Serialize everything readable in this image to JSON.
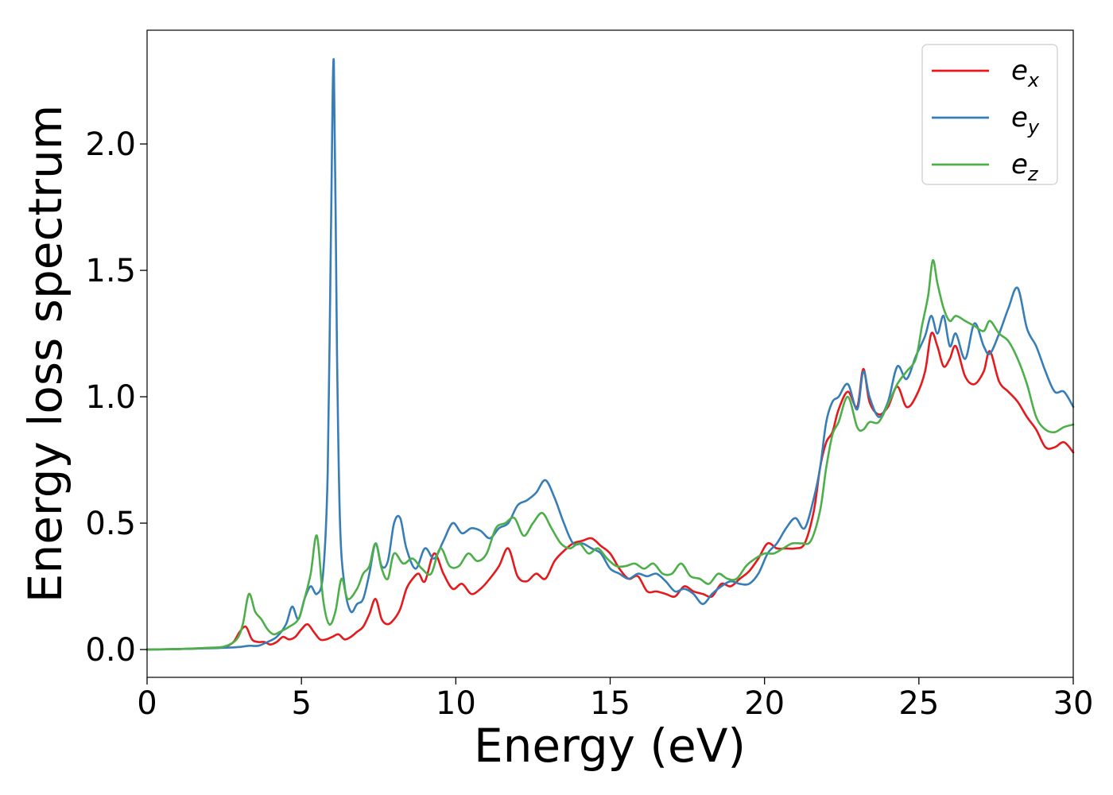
{
  "chart_data": {
    "type": "line",
    "xlabel": "Energy (eV)",
    "ylabel": "Energy loss spectrum",
    "xlim": [
      0,
      30
    ],
    "ylim": [
      -0.11,
      2.45
    ],
    "xticks": [
      0,
      5,
      10,
      15,
      20,
      25,
      30
    ],
    "xtick_labels": [
      "0",
      "5",
      "10",
      "15",
      "20",
      "25",
      "30"
    ],
    "yticks": [
      0.0,
      0.5,
      1.0,
      1.5,
      2.0
    ],
    "ytick_labels": [
      "0.0",
      "0.5",
      "1.0",
      "1.5",
      "2.0"
    ],
    "grid": false,
    "legend": {
      "placement": "top-right"
    },
    "series": [
      {
        "name": "e_x",
        "label_base": "e",
        "label_sub": "x",
        "color": "#e41a1c",
        "x": [
          0,
          1,
          2,
          2.5,
          2.8,
          3.0,
          3.2,
          3.4,
          3.6,
          3.8,
          4.0,
          4.2,
          4.4,
          4.6,
          4.8,
          5.0,
          5.2,
          5.4,
          5.6,
          5.8,
          6.0,
          6.2,
          6.4,
          6.6,
          6.8,
          7.0,
          7.2,
          7.4,
          7.6,
          7.8,
          8.0,
          8.2,
          8.4,
          8.6,
          8.8,
          9.0,
          9.3,
          9.6,
          9.9,
          10.2,
          10.5,
          10.8,
          11.1,
          11.4,
          11.7,
          12.0,
          12.3,
          12.6,
          12.9,
          13.2,
          13.5,
          13.8,
          14.1,
          14.4,
          14.7,
          15.0,
          15.3,
          15.6,
          15.9,
          16.2,
          16.5,
          16.8,
          17.1,
          17.4,
          17.7,
          18.0,
          18.3,
          18.6,
          18.9,
          19.2,
          19.5,
          19.8,
          20.1,
          20.4,
          20.7,
          21.0,
          21.3,
          21.6,
          21.8,
          22.0,
          22.2,
          22.4,
          22.7,
          23.0,
          23.2,
          23.4,
          23.7,
          24.0,
          24.3,
          24.6,
          24.9,
          25.2,
          25.4,
          25.6,
          25.8,
          26.0,
          26.2,
          26.5,
          26.8,
          27.1,
          27.3,
          27.6,
          27.9,
          28.2,
          28.5,
          28.8,
          29.1,
          29.4,
          29.7,
          30.0
        ],
        "y": [
          0,
          0.002,
          0.006,
          0.01,
          0.03,
          0.07,
          0.09,
          0.04,
          0.03,
          0.03,
          0.02,
          0.03,
          0.05,
          0.04,
          0.05,
          0.08,
          0.1,
          0.07,
          0.04,
          0.04,
          0.05,
          0.06,
          0.04,
          0.05,
          0.07,
          0.09,
          0.14,
          0.2,
          0.12,
          0.1,
          0.12,
          0.16,
          0.24,
          0.28,
          0.3,
          0.27,
          0.38,
          0.3,
          0.24,
          0.26,
          0.22,
          0.24,
          0.28,
          0.33,
          0.4,
          0.29,
          0.27,
          0.3,
          0.28,
          0.35,
          0.39,
          0.42,
          0.43,
          0.44,
          0.41,
          0.38,
          0.32,
          0.28,
          0.29,
          0.23,
          0.23,
          0.22,
          0.21,
          0.25,
          0.23,
          0.22,
          0.21,
          0.26,
          0.25,
          0.28,
          0.31,
          0.36,
          0.42,
          0.4,
          0.4,
          0.4,
          0.42,
          0.55,
          0.72,
          0.82,
          0.86,
          0.95,
          1.02,
          0.96,
          1.11,
          0.98,
          0.93,
          0.96,
          1.04,
          0.96,
          1.0,
          1.1,
          1.25,
          1.2,
          1.12,
          1.15,
          1.2,
          1.08,
          1.05,
          1.1,
          1.18,
          1.06,
          1.02,
          0.98,
          0.92,
          0.87,
          0.8,
          0.8,
          0.82,
          0.78
        ]
      },
      {
        "name": "e_y",
        "label_base": "e",
        "label_sub": "y",
        "color": "#377eb8",
        "x": [
          0,
          1,
          2,
          2.5,
          3.0,
          3.3,
          3.6,
          3.9,
          4.2,
          4.5,
          4.7,
          4.9,
          5.1,
          5.3,
          5.5,
          5.7,
          5.85,
          5.95,
          6.05,
          6.15,
          6.25,
          6.4,
          6.6,
          6.8,
          7.0,
          7.2,
          7.4,
          7.6,
          7.8,
          8.0,
          8.2,
          8.4,
          8.7,
          9.0,
          9.3,
          9.6,
          9.9,
          10.2,
          10.5,
          10.8,
          11.1,
          11.4,
          11.7,
          12.0,
          12.3,
          12.6,
          12.9,
          13.2,
          13.5,
          13.8,
          14.1,
          14.4,
          14.7,
          15.0,
          15.3,
          15.6,
          15.9,
          16.2,
          16.5,
          16.8,
          17.1,
          17.4,
          17.7,
          18.0,
          18.3,
          18.6,
          18.9,
          19.2,
          19.5,
          19.8,
          20.1,
          20.4,
          20.7,
          21.0,
          21.3,
          21.6,
          21.8,
          22.0,
          22.2,
          22.4,
          22.7,
          23.0,
          23.2,
          23.4,
          23.7,
          24.0,
          24.3,
          24.6,
          24.9,
          25.2,
          25.4,
          25.6,
          25.8,
          26.0,
          26.2,
          26.5,
          26.8,
          27.1,
          27.3,
          27.6,
          27.9,
          28.2,
          28.5,
          28.8,
          29.1,
          29.4,
          29.7,
          30.0
        ],
        "y": [
          0,
          0.002,
          0.005,
          0.007,
          0.01,
          0.015,
          0.015,
          0.03,
          0.05,
          0.1,
          0.17,
          0.12,
          0.2,
          0.25,
          0.22,
          0.3,
          0.7,
          1.6,
          2.33,
          1.2,
          0.5,
          0.25,
          0.15,
          0.18,
          0.2,
          0.3,
          0.42,
          0.33,
          0.35,
          0.5,
          0.52,
          0.4,
          0.32,
          0.4,
          0.36,
          0.43,
          0.5,
          0.46,
          0.48,
          0.47,
          0.44,
          0.48,
          0.5,
          0.57,
          0.59,
          0.62,
          0.67,
          0.6,
          0.5,
          0.42,
          0.42,
          0.4,
          0.38,
          0.32,
          0.3,
          0.28,
          0.3,
          0.29,
          0.3,
          0.27,
          0.23,
          0.24,
          0.22,
          0.18,
          0.22,
          0.25,
          0.27,
          0.26,
          0.26,
          0.3,
          0.38,
          0.42,
          0.48,
          0.52,
          0.48,
          0.6,
          0.72,
          0.9,
          0.98,
          1.0,
          1.05,
          0.95,
          1.1,
          1.0,
          0.92,
          0.98,
          1.12,
          1.07,
          1.16,
          1.24,
          1.32,
          1.25,
          1.32,
          1.2,
          1.25,
          1.15,
          1.29,
          1.2,
          1.17,
          1.25,
          1.35,
          1.43,
          1.27,
          1.2,
          1.1,
          1.02,
          1.02,
          0.96
        ]
      },
      {
        "name": "e_z",
        "label_base": "e",
        "label_sub": "z",
        "color": "#4daf4a",
        "x": [
          0,
          1,
          2,
          2.5,
          2.9,
          3.1,
          3.3,
          3.5,
          3.7,
          3.9,
          4.1,
          4.3,
          4.6,
          4.9,
          5.1,
          5.3,
          5.5,
          5.7,
          5.9,
          6.1,
          6.3,
          6.5,
          6.8,
          7.0,
          7.2,
          7.4,
          7.6,
          7.8,
          8.0,
          8.3,
          8.6,
          8.9,
          9.2,
          9.5,
          9.8,
          10.1,
          10.4,
          10.7,
          11.0,
          11.3,
          11.6,
          11.9,
          12.2,
          12.5,
          12.8,
          13.1,
          13.4,
          13.7,
          14.0,
          14.3,
          14.6,
          14.9,
          15.2,
          15.5,
          15.8,
          16.1,
          16.4,
          16.7,
          17.0,
          17.3,
          17.6,
          17.9,
          18.2,
          18.5,
          18.8,
          19.1,
          19.4,
          19.7,
          20.0,
          20.3,
          20.6,
          20.9,
          21.2,
          21.5,
          21.8,
          22.0,
          22.2,
          22.4,
          22.7,
          23.0,
          23.2,
          23.4,
          23.7,
          24.0,
          24.3,
          24.6,
          24.9,
          25.1,
          25.3,
          25.45,
          25.6,
          25.8,
          26.0,
          26.2,
          26.5,
          26.8,
          27.1,
          27.3,
          27.6,
          27.9,
          28.2,
          28.5,
          28.8,
          29.1,
          29.4,
          29.7,
          30.0
        ],
        "y": [
          0,
          0.002,
          0.007,
          0.012,
          0.04,
          0.1,
          0.22,
          0.15,
          0.12,
          0.08,
          0.06,
          0.07,
          0.09,
          0.12,
          0.2,
          0.3,
          0.45,
          0.2,
          0.1,
          0.15,
          0.28,
          0.2,
          0.24,
          0.3,
          0.33,
          0.42,
          0.32,
          0.28,
          0.38,
          0.34,
          0.36,
          0.32,
          0.3,
          0.4,
          0.33,
          0.33,
          0.38,
          0.35,
          0.38,
          0.48,
          0.5,
          0.52,
          0.45,
          0.5,
          0.54,
          0.48,
          0.42,
          0.4,
          0.42,
          0.38,
          0.4,
          0.36,
          0.33,
          0.33,
          0.34,
          0.32,
          0.34,
          0.3,
          0.3,
          0.34,
          0.29,
          0.28,
          0.26,
          0.3,
          0.28,
          0.28,
          0.33,
          0.36,
          0.38,
          0.38,
          0.4,
          0.42,
          0.42,
          0.43,
          0.55,
          0.72,
          0.85,
          0.9,
          1.0,
          0.88,
          0.87,
          0.9,
          0.9,
          0.97,
          1.05,
          1.1,
          1.15,
          1.28,
          1.4,
          1.54,
          1.45,
          1.35,
          1.3,
          1.32,
          1.3,
          1.28,
          1.26,
          1.3,
          1.25,
          1.22,
          1.15,
          1.05,
          0.92,
          0.87,
          0.86,
          0.88,
          0.89
        ]
      }
    ]
  }
}
